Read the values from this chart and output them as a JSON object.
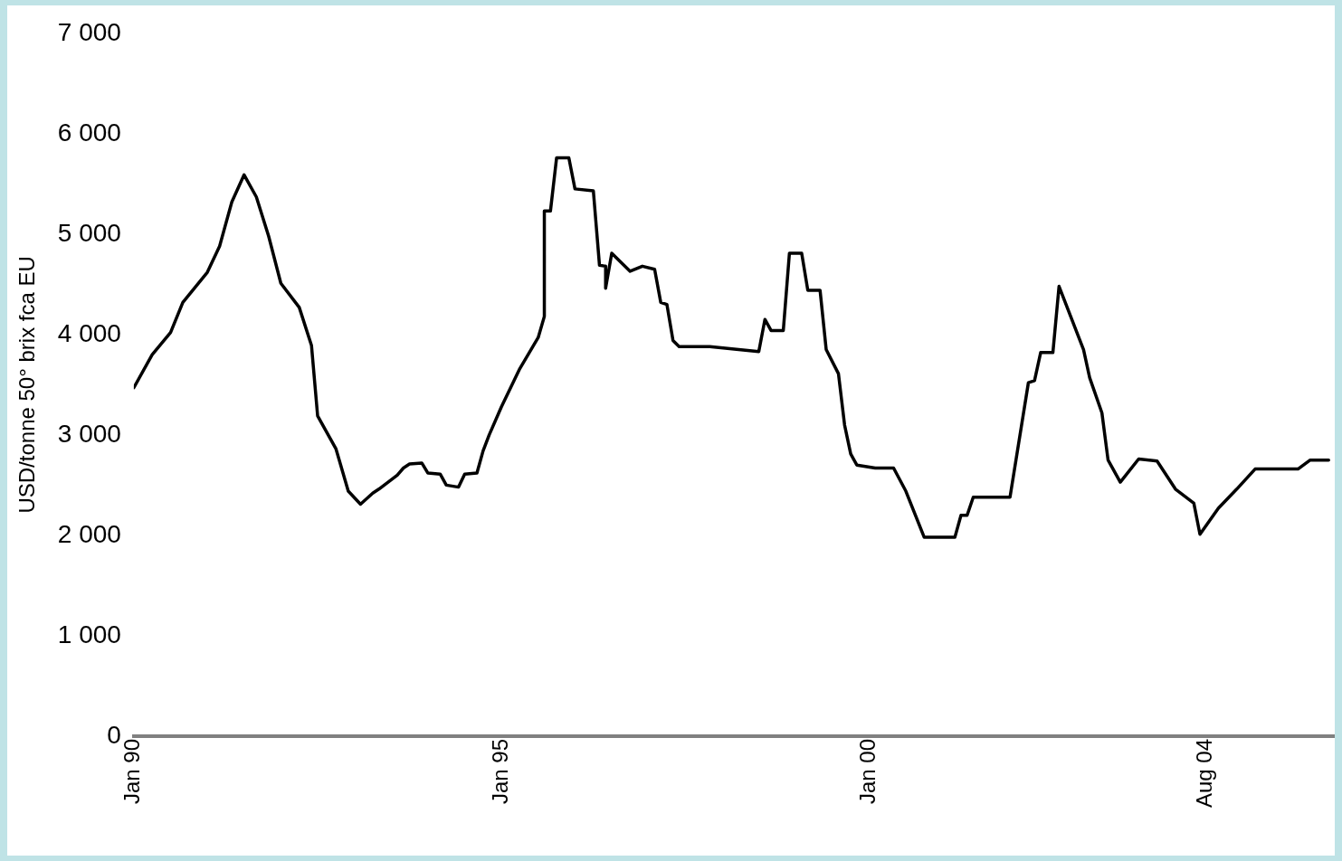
{
  "chart_data": {
    "type": "line",
    "ylabel": "USD/tonne 50° brix fca EU",
    "xlim": [
      "1990-01",
      "2006-05"
    ],
    "xticks": [
      {
        "value": "1990-01",
        "label": "Jan 90"
      },
      {
        "value": "1995-01",
        "label": "Jan 95"
      },
      {
        "value": "2000-01",
        "label": "Jan 00"
      },
      {
        "value": "2004-08",
        "label": "Aug 04"
      }
    ],
    "ylim": [
      0,
      7000
    ],
    "yticks": [
      0,
      {
        "value": 1000,
        "label": "1 000"
      },
      {
        "value": 2000,
        "label": "2 000"
      },
      {
        "value": 3000,
        "label": "3 000"
      },
      {
        "value": 4000,
        "label": "4 000"
      },
      {
        "value": 5000,
        "label": "5 000"
      },
      {
        "value": 6000,
        "label": "6 000"
      },
      {
        "value": 7000,
        "label": "7 000"
      }
    ],
    "grid": false,
    "legend": false,
    "marker": "none",
    "line_style": "solid",
    "series": [
      {
        "color": "#000000",
        "x": [
          "1990-01",
          "1990-04",
          "1990-07",
          "1990-09",
          "1991-01",
          "1991-03",
          "1991-05",
          "1991-07",
          "1991-09",
          "1991-11",
          "1992-01",
          "1992-04",
          "1992-06",
          "1992-07",
          "1992-10",
          "1992-12",
          "1993-02",
          "1993-04",
          "1993-05",
          "1993-08",
          "1993-09",
          "1993-10",
          "1993-12",
          "1994-01",
          "1994-03",
          "1994-04",
          "1994-06",
          "1994-07",
          "1994-09",
          "1994-10",
          "1994-11",
          "1995-01",
          "1995-04",
          "1995-07",
          "1995-08",
          "1995-08",
          "1995-09",
          "1995-10",
          "1995-12",
          "1996-01",
          "1996-04",
          "1996-05",
          "1996-06",
          "1996-06",
          "1996-07",
          "1996-10",
          "1996-12",
          "1997-02",
          "1997-03",
          "1997-04",
          "1997-05",
          "1997-06",
          "1997-11",
          "1998-07",
          "1998-08",
          "1998-09",
          "1998-11",
          "1998-12",
          "1999-02",
          "1999-03",
          "1999-05",
          "1999-06",
          "1999-08",
          "1999-09",
          "1999-10",
          "1999-11",
          "2000-02",
          "2000-05",
          "2000-07",
          "2000-10",
          "2001-03",
          "2001-04",
          "2001-05",
          "2001-06",
          "2001-12",
          "2002-03",
          "2002-04",
          "2002-05",
          "2002-07",
          "2002-08",
          "2002-12",
          "2003-01",
          "2003-03",
          "2003-04",
          "2003-06",
          "2003-09",
          "2003-12",
          "2004-03",
          "2004-06",
          "2004-07",
          "2004-10",
          "2005-01",
          "2005-04",
          "2005-11",
          "2006-01",
          "2006-04"
        ],
        "values": [
          3470,
          3800,
          4020,
          4320,
          4620,
          4880,
          5320,
          5590,
          5370,
          4980,
          4510,
          4270,
          3890,
          3190,
          2860,
          2440,
          2310,
          2420,
          2460,
          2600,
          2670,
          2710,
          2720,
          2620,
          2610,
          2500,
          2480,
          2610,
          2620,
          2840,
          3000,
          3280,
          3660,
          3970,
          4180,
          5230,
          5230,
          5760,
          5760,
          5450,
          5430,
          4690,
          4680,
          4460,
          4810,
          4630,
          4680,
          4650,
          4320,
          4300,
          3940,
          3880,
          3880,
          3830,
          4150,
          4040,
          4040,
          4810,
          4810,
          4440,
          4440,
          3850,
          3610,
          3100,
          2810,
          2700,
          2670,
          2670,
          2440,
          1980,
          1980,
          2200,
          2200,
          2380,
          2380,
          3520,
          3540,
          3820,
          3820,
          4480,
          3850,
          3570,
          3220,
          2750,
          2530,
          2760,
          2740,
          2460,
          2320,
          2010,
          2270,
          2460,
          2660,
          2660,
          2750,
          2750
        ]
      }
    ]
  }
}
